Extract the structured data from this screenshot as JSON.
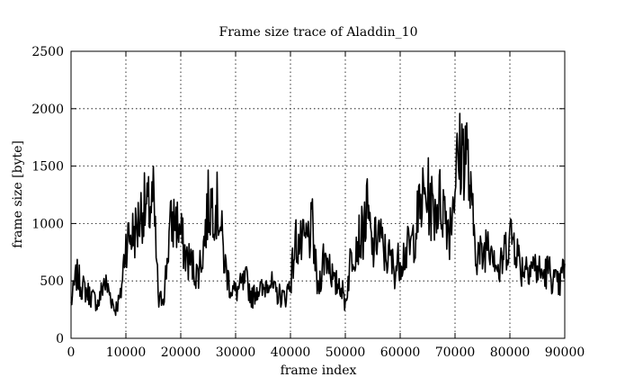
{
  "chart_data": {
    "type": "line",
    "title": "Frame size trace of Aladdin_10",
    "xlabel": "frame index",
    "ylabel": "frame size [byte]",
    "xlim": [
      0,
      90000
    ],
    "ylim": [
      0,
      2500
    ],
    "xticks": [
      0,
      10000,
      20000,
      30000,
      40000,
      50000,
      60000,
      70000,
      80000,
      90000
    ],
    "yticks": [
      0,
      500,
      1000,
      1500,
      2000,
      2500
    ],
    "grid": true,
    "legend": "none",
    "series": [
      {
        "color": "#000000",
        "x": [
          0,
          1000,
          2000,
          3000,
          4000,
          5000,
          6000,
          7000,
          8000,
          9000,
          10000,
          11000,
          12000,
          13000,
          14000,
          15000,
          16000,
          17000,
          18000,
          19000,
          20000,
          21000,
          22000,
          23000,
          24000,
          25000,
          26000,
          27000,
          28000,
          29000,
          30000,
          31000,
          32000,
          33000,
          34000,
          35000,
          36000,
          37000,
          38000,
          39000,
          40000,
          41000,
          42000,
          43000,
          44000,
          45000,
          46000,
          47000,
          48000,
          49000,
          50000,
          51000,
          52000,
          53000,
          54000,
          55000,
          56000,
          57000,
          58000,
          59000,
          60000,
          61000,
          62000,
          63000,
          64000,
          65000,
          66000,
          67000,
          68000,
          69000,
          70000,
          71000,
          72000,
          73000,
          74000,
          75000,
          76000,
          77000,
          78000,
          79000,
          80000,
          81000,
          82000,
          83000,
          84000,
          85000,
          86000,
          87000,
          88000,
          89000,
          90000
        ],
        "y": [
          300,
          550,
          450,
          400,
          350,
          300,
          500,
          400,
          250,
          350,
          850,
          900,
          950,
          1150,
          1100,
          1200,
          300,
          400,
          950,
          1050,
          900,
          700,
          650,
          550,
          750,
          1150,
          1200,
          1100,
          650,
          450,
          400,
          450,
          500,
          350,
          450,
          400,
          550,
          400,
          380,
          350,
          500,
          850,
          800,
          850,
          950,
          400,
          700,
          700,
          450,
          500,
          300,
          700,
          850,
          900,
          1100,
          750,
          950,
          750,
          700,
          600,
          700,
          750,
          800,
          1000,
          1200,
          1250,
          1100,
          1200,
          1150,
          950,
          1400,
          1600,
          1700,
          1100,
          750,
          700,
          900,
          800,
          550,
          750,
          900,
          850,
          600,
          650,
          650,
          600,
          550,
          600,
          500,
          450,
          650
        ]
      }
    ]
  }
}
